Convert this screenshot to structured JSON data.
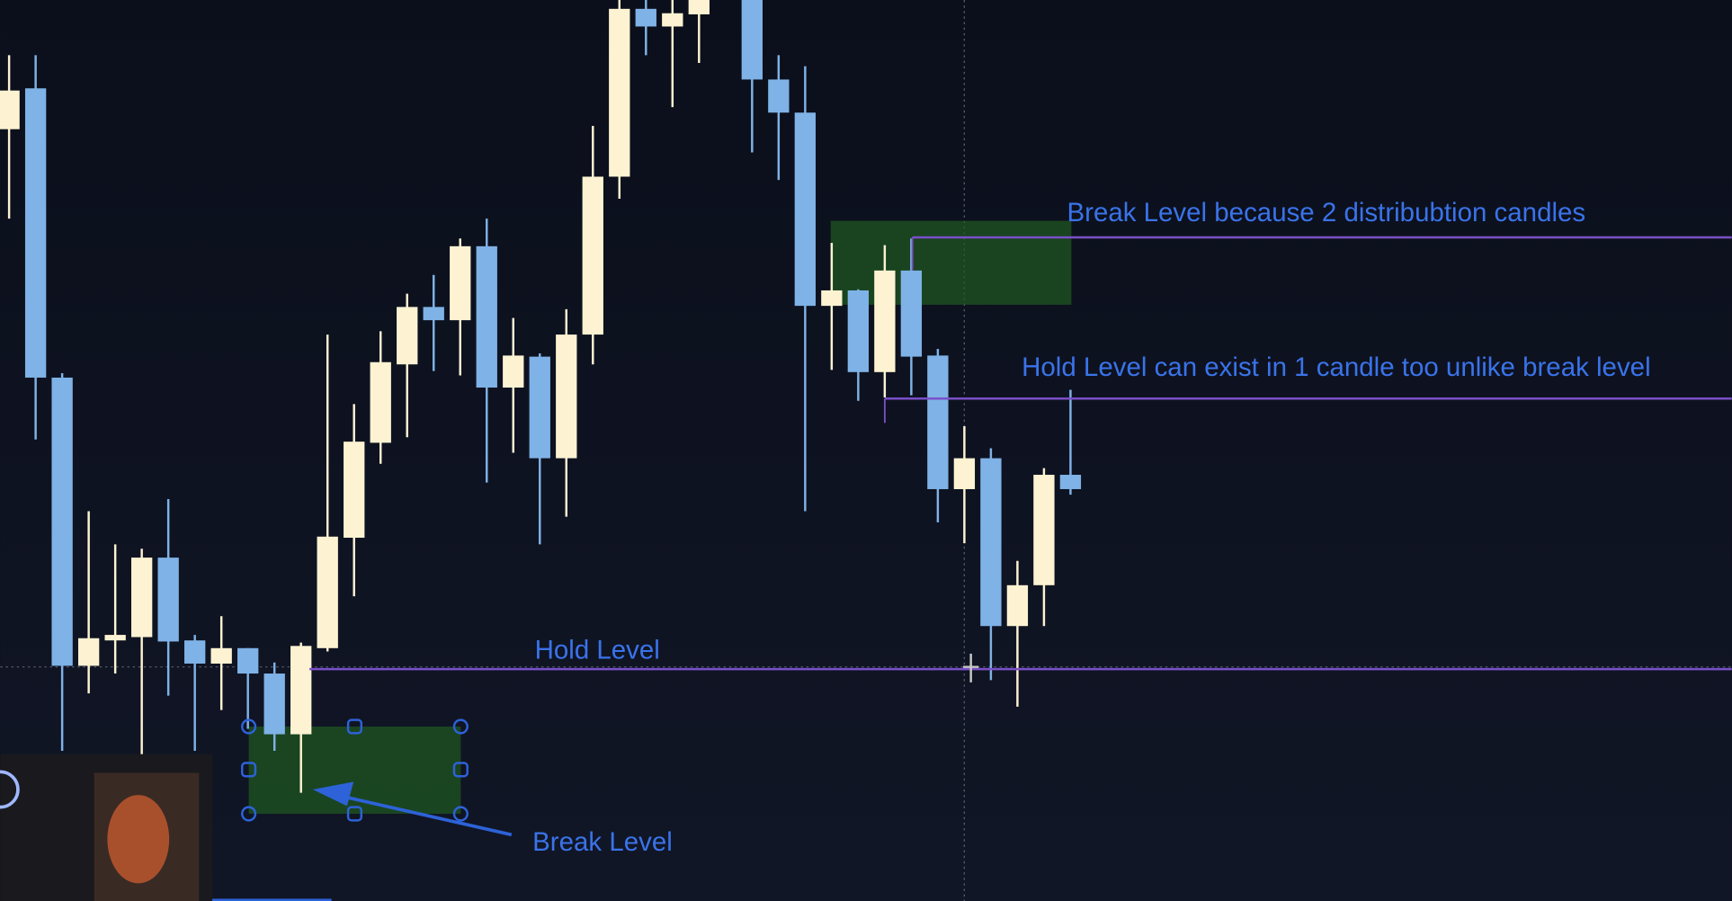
{
  "chart_data": {
    "type": "candlestick",
    "categories": [
      null,
      null,
      null,
      null,
      null,
      null,
      null,
      null,
      null,
      null,
      null,
      null,
      null,
      null,
      null,
      null,
      null,
      null,
      null,
      null,
      null,
      null,
      null,
      null,
      null,
      null,
      null,
      null,
      null,
      null,
      null,
      null,
      null,
      null,
      null,
      null,
      null,
      null,
      null,
      null,
      null
    ],
    "open": [
      699,
      736,
      474,
      213,
      236,
      239,
      311,
      236,
      215,
      229,
      206,
      151,
      229,
      329,
      415,
      486,
      538,
      526,
      593,
      465,
      493,
      401,
      513,
      656,
      808,
      792,
      803,
      null,
      816,
      744,
      714,
      539,
      553,
      479,
      571,
      494,
      373,
      401,
      249,
      286,
      386
    ],
    "high": [
      766,
      766,
      478,
      353,
      323,
      319,
      364,
      241,
      258,
      229,
      216,
      234,
      513,
      450,
      516,
      550,
      567,
      600,
      618,
      528,
      496,
      536,
      702,
      816,
      816,
      816,
      816,
      null,
      816,
      766,
      756,
      596,
      554,
      594,
      600,
      500,
      430,
      410,
      308,
      392,
      463
    ],
    "low": [
      618,
      418,
      136,
      188,
      206,
      126,
      186,
      136,
      173,
      156,
      136,
      98,
      226,
      276,
      396,
      420,
      480,
      476,
      379,
      406,
      323,
      348,
      486,
      636,
      766,
      719,
      759,
      null,
      678,
      653,
      353,
      481,
      453,
      456,
      458,
      343,
      324,
      200,
      176,
      249,
      368
    ],
    "close": [
      734,
      474,
      213,
      238,
      241,
      311,
      235,
      215,
      229,
      206,
      151,
      231,
      330,
      416,
      488,
      538,
      526,
      593,
      465,
      494,
      401,
      513,
      656,
      808,
      792,
      804,
      816,
      null,
      744,
      714,
      539,
      553,
      479,
      571,
      493,
      373,
      401,
      249,
      286,
      386,
      373
    ],
    "up_color": "#fdf3d2",
    "down_color": "#7fb2e6",
    "ylim": [
      0,
      816
    ],
    "level_color": "#7b4fc9",
    "annotations": [
      {
        "text": "Break Level because 2 distribubtion candles",
        "level": 601
      },
      {
        "text": "Hold Level can exist in 1 candle too unlike break level",
        "level": 455
      },
      {
        "text": "Hold Level",
        "level": 210
      },
      {
        "text": "Break Level"
      }
    ]
  }
}
